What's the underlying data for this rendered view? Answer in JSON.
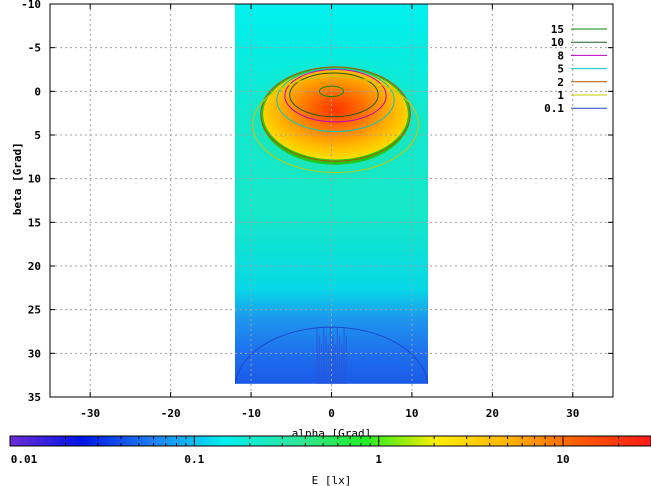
{
  "chart_data": {
    "type": "heatmap",
    "xlabel": "alpha [Grad]",
    "ylabel": "beta [Grad]",
    "xlim": [
      -35,
      35
    ],
    "ylim": [
      35,
      -10
    ],
    "x_ticks": [
      "-30",
      "-20",
      "-10",
      "0",
      "10",
      "20",
      "30"
    ],
    "y_ticks": [
      "-10",
      "-5",
      "0",
      "5",
      "10",
      "15",
      "20",
      "25",
      "30",
      "35"
    ],
    "grid": true,
    "data_extent": {
      "alpha": [
        -12,
        12
      ],
      "beta": [
        -10,
        33.5
      ]
    },
    "peak": {
      "alpha": 0,
      "beta": 0,
      "value": 20
    },
    "colorbar": {
      "label": "E [lx]",
      "scale": "log",
      "range": [
        0.01,
        30
      ],
      "tick_labels": [
        "0.01",
        "0.1",
        "1",
        "10"
      ],
      "colors": [
        "#6e2bd6",
        "#0015e6",
        "#1e7ff0",
        "#00f0f0",
        "#2ee6a0",
        "#22ee22",
        "#ffee00",
        "#ffb400",
        "#ff5a00",
        "#ff1a1a"
      ]
    },
    "legend": {
      "placement": "top-right",
      "series": [
        {
          "name": "15",
          "color": "#0a8a0a"
        },
        {
          "name": "10",
          "color": "#1d5a1d"
        },
        {
          "name": "8",
          "color": "#c000c0"
        },
        {
          "name": "5",
          "color": "#00c8c8"
        },
        {
          "name": "2",
          "color": "#b45000"
        },
        {
          "name": "1",
          "color": "#c8c800"
        },
        {
          "name": "0.1",
          "color": "#1e46c8"
        }
      ]
    },
    "contours": [
      {
        "level": "15",
        "center": [
          0,
          0
        ],
        "radius": [
          1.5,
          0.6
        ]
      },
      {
        "level": "10",
        "center": [
          0.3,
          0.4
        ],
        "radius": [
          5.5,
          2.5
        ]
      },
      {
        "level": "8",
        "center": [
          0.5,
          0.5
        ],
        "radius": [
          6.3,
          3.0
        ]
      },
      {
        "level": "5",
        "center": [
          0.5,
          1.0
        ],
        "radius": [
          7.3,
          3.6
        ]
      },
      {
        "level": "2",
        "center": [
          0.5,
          2.6
        ],
        "radius": [
          9.3,
          5.4
        ]
      },
      {
        "level": "1",
        "center": [
          0.5,
          3.8
        ],
        "radius": [
          10.3,
          5.5
        ]
      },
      {
        "level": "0.1",
        "center": [
          0,
          34
        ],
        "radius": [
          12,
          7
        ]
      }
    ]
  }
}
